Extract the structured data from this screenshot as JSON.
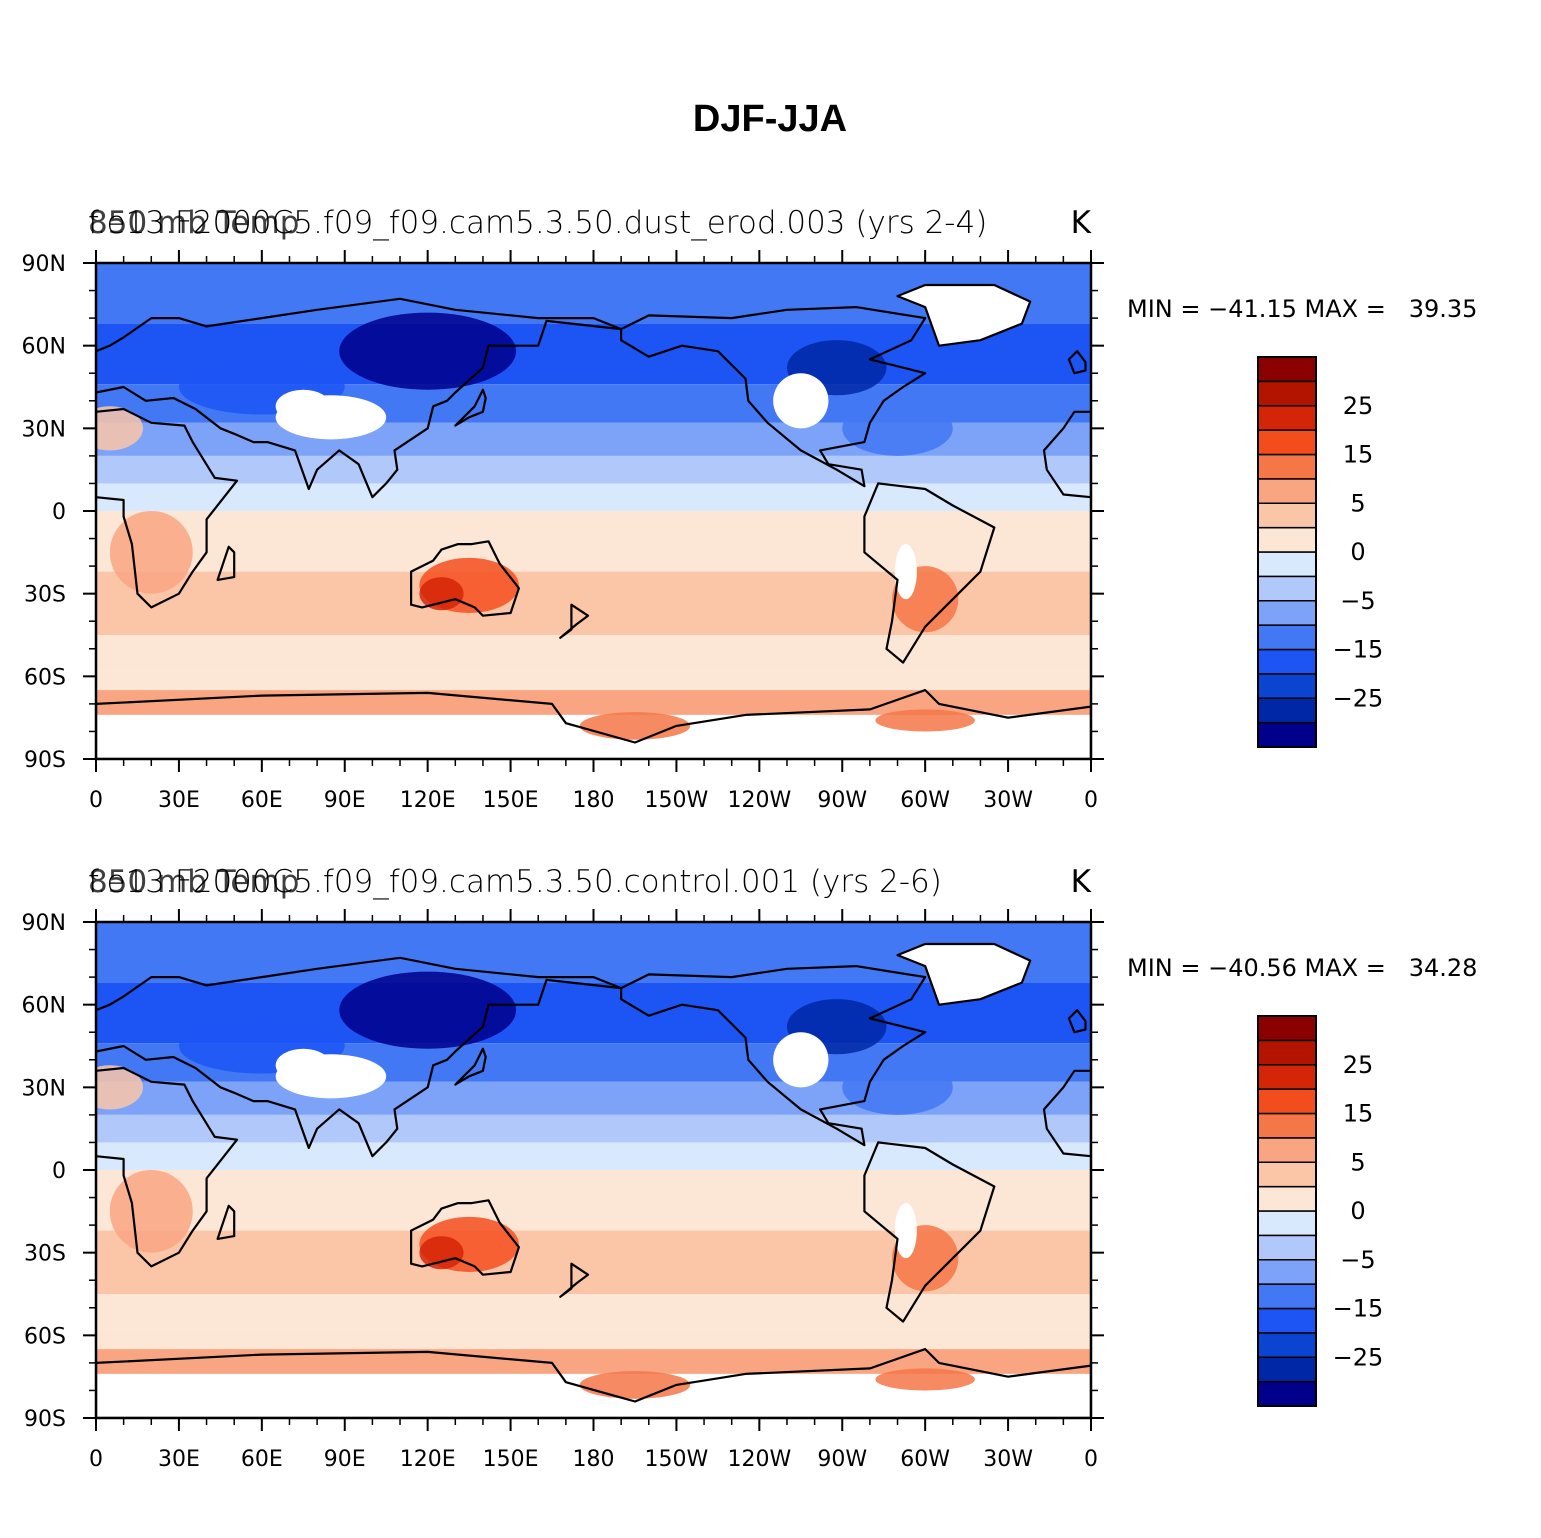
{
  "figure_title": "DJF-JJA",
  "units": "K",
  "colors": {
    "contour_fill": [
      "#00008b",
      "#0028a6",
      "#0a44d1",
      "#1c55f4",
      "#4378f5",
      "#7ca3f8",
      "#b1c9fa",
      "#d8e8fd",
      "#fce6d6",
      "#fbc6a8",
      "#f9a582",
      "#f57646",
      "#f44d1d",
      "#d42508",
      "#b21400",
      "#8b0000"
    ],
    "continent_line": "#000000",
    "missing": "#ffffff"
  },
  "chart_data": [
    {
      "type": "heatmap",
      "map_type": "filled contour (global lat-lon)",
      "title_left": "f.e13.F2000C5.f09_f09.cam5.3.50.dust_erod.003 (yrs 2-4)",
      "title_left_overprint": "850 mb Temp",
      "title_right": "K",
      "min_max_label": "MIN = −41.15 MAX =   39.35",
      "min": -41.15,
      "max": 39.35,
      "x_ticks": [
        "0",
        "30E",
        "60E",
        "90E",
        "120E",
        "150E",
        "180",
        "150W",
        "120W",
        "90W",
        "60W",
        "30W",
        "0"
      ],
      "y_ticks": [
        "90N",
        "60N",
        "30N",
        "0",
        "30S",
        "60S",
        "90S"
      ],
      "colorbar_levels": [
        -35,
        -30,
        -25,
        -20,
        -15,
        -10,
        -5,
        -2,
        0,
        2,
        5,
        10,
        15,
        20,
        25,
        30
      ],
      "colorbar_labels": [
        "25",
        "15",
        "5",
        "0",
        "−5",
        "−15",
        "−25"
      ]
    },
    {
      "type": "heatmap",
      "map_type": "filled contour (global lat-lon)",
      "title_left": "f.e13.F2000C5.f09_f09.cam5.3.50.control.001 (yrs 2-6)",
      "title_left_overprint": "850 mb Temp",
      "title_right": "K",
      "min_max_label": "MIN = −40.56 MAX =   34.28",
      "min": -40.56,
      "max": 34.28,
      "x_ticks": [
        "0",
        "30E",
        "60E",
        "90E",
        "120E",
        "150E",
        "180",
        "150W",
        "120W",
        "90W",
        "60W",
        "30W",
        "0"
      ],
      "y_ticks": [
        "90N",
        "60N",
        "30N",
        "0",
        "30S",
        "60S",
        "90S"
      ],
      "colorbar_levels": [
        -35,
        -30,
        -25,
        -20,
        -15,
        -10,
        -5,
        -2,
        0,
        2,
        5,
        10,
        15,
        20,
        25,
        30
      ],
      "colorbar_labels": [
        "25",
        "15",
        "5",
        "0",
        "−5",
        "−15",
        "−25"
      ]
    }
  ]
}
